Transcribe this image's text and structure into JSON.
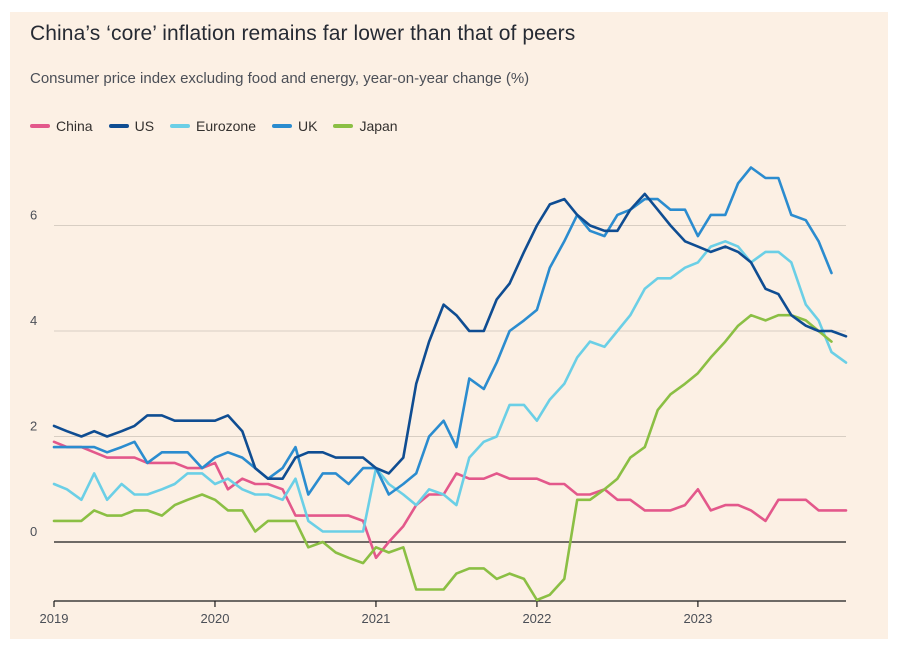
{
  "chart_data": {
    "type": "line",
    "title": "China’s ‘core’ inflation remains far lower than that of peers",
    "subtitle": "Consumer price index excluding food and energy, year-on-year change (%)",
    "xlabel": "",
    "ylabel": "",
    "xlim": [
      2019.0,
      2023.92
    ],
    "ylim": [
      -1.1,
      7.5
    ],
    "y_ticks": [
      0,
      2,
      4,
      6
    ],
    "y_tick_labels": [
      "0",
      "2",
      "4",
      "6"
    ],
    "x_ticks": [
      2019,
      2020,
      2021,
      2022,
      2023
    ],
    "x_tick_labels": [
      "2019",
      "2020",
      "2021",
      "2022",
      "2023"
    ],
    "colors": {
      "China": "#e3588b",
      "US": "#0f4d92",
      "Eurozone": "#6bcfe6",
      "UK": "#2b8ccf",
      "Japan": "#8bbf44",
      "grid": "#d8cec3",
      "zero_line": "#1a1a1a",
      "background": "#fcf0e4"
    },
    "series": [
      {
        "name": "China",
        "points": [
          [
            2019.0,
            1.9
          ],
          [
            2019.08,
            1.8
          ],
          [
            2019.17,
            1.8
          ],
          [
            2019.25,
            1.7
          ],
          [
            2019.33,
            1.6
          ],
          [
            2019.42,
            1.6
          ],
          [
            2019.5,
            1.6
          ],
          [
            2019.58,
            1.5
          ],
          [
            2019.67,
            1.5
          ],
          [
            2019.75,
            1.5
          ],
          [
            2019.83,
            1.4
          ],
          [
            2019.92,
            1.4
          ],
          [
            2020.0,
            1.5
          ],
          [
            2020.08,
            1.0
          ],
          [
            2020.17,
            1.2
          ],
          [
            2020.25,
            1.1
          ],
          [
            2020.33,
            1.1
          ],
          [
            2020.42,
            1.0
          ],
          [
            2020.5,
            0.5
          ],
          [
            2020.58,
            0.5
          ],
          [
            2020.67,
            0.5
          ],
          [
            2020.75,
            0.5
          ],
          [
            2020.83,
            0.5
          ],
          [
            2020.92,
            0.4
          ],
          [
            2021.0,
            -0.3
          ],
          [
            2021.08,
            0.0
          ],
          [
            2021.17,
            0.3
          ],
          [
            2021.25,
            0.7
          ],
          [
            2021.33,
            0.9
          ],
          [
            2021.42,
            0.9
          ],
          [
            2021.5,
            1.3
          ],
          [
            2021.58,
            1.2
          ],
          [
            2021.67,
            1.2
          ],
          [
            2021.75,
            1.3
          ],
          [
            2021.83,
            1.2
          ],
          [
            2021.92,
            1.2
          ],
          [
            2022.0,
            1.2
          ],
          [
            2022.08,
            1.1
          ],
          [
            2022.17,
            1.1
          ],
          [
            2022.25,
            0.9
          ],
          [
            2022.33,
            0.9
          ],
          [
            2022.42,
            1.0
          ],
          [
            2022.5,
            0.8
          ],
          [
            2022.58,
            0.8
          ],
          [
            2022.67,
            0.6
          ],
          [
            2022.75,
            0.6
          ],
          [
            2022.83,
            0.6
          ],
          [
            2022.92,
            0.7
          ],
          [
            2023.0,
            1.0
          ],
          [
            2023.08,
            0.6
          ],
          [
            2023.17,
            0.7
          ],
          [
            2023.25,
            0.7
          ],
          [
            2023.33,
            0.6
          ],
          [
            2023.42,
            0.4
          ],
          [
            2023.5,
            0.8
          ],
          [
            2023.58,
            0.8
          ],
          [
            2023.67,
            0.8
          ],
          [
            2023.75,
            0.6
          ],
          [
            2023.83,
            0.6
          ],
          [
            2023.92,
            0.6
          ]
        ]
      },
      {
        "name": "US",
        "points": [
          [
            2019.0,
            2.2
          ],
          [
            2019.08,
            2.1
          ],
          [
            2019.17,
            2.0
          ],
          [
            2019.25,
            2.1
          ],
          [
            2019.33,
            2.0
          ],
          [
            2019.42,
            2.1
          ],
          [
            2019.5,
            2.2
          ],
          [
            2019.58,
            2.4
          ],
          [
            2019.67,
            2.4
          ],
          [
            2019.75,
            2.3
          ],
          [
            2019.83,
            2.3
          ],
          [
            2019.92,
            2.3
          ],
          [
            2020.0,
            2.3
          ],
          [
            2020.08,
            2.4
          ],
          [
            2020.17,
            2.1
          ],
          [
            2020.25,
            1.4
          ],
          [
            2020.33,
            1.2
          ],
          [
            2020.42,
            1.2
          ],
          [
            2020.5,
            1.6
          ],
          [
            2020.58,
            1.7
          ],
          [
            2020.67,
            1.7
          ],
          [
            2020.75,
            1.6
          ],
          [
            2020.83,
            1.6
          ],
          [
            2020.92,
            1.6
          ],
          [
            2021.0,
            1.4
          ],
          [
            2021.08,
            1.3
          ],
          [
            2021.17,
            1.6
          ],
          [
            2021.25,
            3.0
          ],
          [
            2021.33,
            3.8
          ],
          [
            2021.42,
            4.5
          ],
          [
            2021.5,
            4.3
          ],
          [
            2021.58,
            4.0
          ],
          [
            2021.67,
            4.0
          ],
          [
            2021.75,
            4.6
          ],
          [
            2021.83,
            4.9
          ],
          [
            2021.92,
            5.5
          ],
          [
            2022.0,
            6.0
          ],
          [
            2022.08,
            6.4
          ],
          [
            2022.17,
            6.5
          ],
          [
            2022.25,
            6.2
          ],
          [
            2022.33,
            6.0
          ],
          [
            2022.42,
            5.9
          ],
          [
            2022.5,
            5.9
          ],
          [
            2022.58,
            6.3
          ],
          [
            2022.67,
            6.6
          ],
          [
            2022.75,
            6.3
          ],
          [
            2022.83,
            6.0
          ],
          [
            2022.92,
            5.7
          ],
          [
            2023.0,
            5.6
          ],
          [
            2023.08,
            5.5
          ],
          [
            2023.17,
            5.6
          ],
          [
            2023.25,
            5.5
          ],
          [
            2023.33,
            5.3
          ],
          [
            2023.42,
            4.8
          ],
          [
            2023.5,
            4.7
          ],
          [
            2023.58,
            4.3
          ],
          [
            2023.67,
            4.1
          ],
          [
            2023.75,
            4.0
          ],
          [
            2023.83,
            4.0
          ],
          [
            2023.92,
            3.9
          ]
        ]
      },
      {
        "name": "Eurozone",
        "points": [
          [
            2019.0,
            1.1
          ],
          [
            2019.08,
            1.0
          ],
          [
            2019.17,
            0.8
          ],
          [
            2019.25,
            1.3
          ],
          [
            2019.33,
            0.8
          ],
          [
            2019.42,
            1.1
          ],
          [
            2019.5,
            0.9
          ],
          [
            2019.58,
            0.9
          ],
          [
            2019.67,
            1.0
          ],
          [
            2019.75,
            1.1
          ],
          [
            2019.83,
            1.3
          ],
          [
            2019.92,
            1.3
          ],
          [
            2020.0,
            1.1
          ],
          [
            2020.08,
            1.2
          ],
          [
            2020.17,
            1.0
          ],
          [
            2020.25,
            0.9
          ],
          [
            2020.33,
            0.9
          ],
          [
            2020.42,
            0.8
          ],
          [
            2020.5,
            1.2
          ],
          [
            2020.58,
            0.4
          ],
          [
            2020.67,
            0.2
          ],
          [
            2020.75,
            0.2
          ],
          [
            2020.83,
            0.2
          ],
          [
            2020.92,
            0.2
          ],
          [
            2021.0,
            1.4
          ],
          [
            2021.08,
            1.1
          ],
          [
            2021.17,
            0.9
          ],
          [
            2021.25,
            0.7
          ],
          [
            2021.33,
            1.0
          ],
          [
            2021.42,
            0.9
          ],
          [
            2021.5,
            0.7
          ],
          [
            2021.58,
            1.6
          ],
          [
            2021.67,
            1.9
          ],
          [
            2021.75,
            2.0
          ],
          [
            2021.83,
            2.6
          ],
          [
            2021.92,
            2.6
          ],
          [
            2022.0,
            2.3
          ],
          [
            2022.08,
            2.7
          ],
          [
            2022.17,
            3.0
          ],
          [
            2022.25,
            3.5
          ],
          [
            2022.33,
            3.8
          ],
          [
            2022.42,
            3.7
          ],
          [
            2022.5,
            4.0
          ],
          [
            2022.58,
            4.3
          ],
          [
            2022.67,
            4.8
          ],
          [
            2022.75,
            5.0
          ],
          [
            2022.83,
            5.0
          ],
          [
            2022.92,
            5.2
          ],
          [
            2023.0,
            5.3
          ],
          [
            2023.08,
            5.6
          ],
          [
            2023.17,
            5.7
          ],
          [
            2023.25,
            5.6
          ],
          [
            2023.33,
            5.3
          ],
          [
            2023.42,
            5.5
          ],
          [
            2023.5,
            5.5
          ],
          [
            2023.58,
            5.3
          ],
          [
            2023.67,
            4.5
          ],
          [
            2023.75,
            4.2
          ],
          [
            2023.83,
            3.6
          ],
          [
            2023.92,
            3.4
          ]
        ]
      },
      {
        "name": "UK",
        "points": [
          [
            2019.0,
            1.8
          ],
          [
            2019.08,
            1.8
          ],
          [
            2019.17,
            1.8
          ],
          [
            2019.25,
            1.8
          ],
          [
            2019.33,
            1.7
          ],
          [
            2019.42,
            1.8
          ],
          [
            2019.5,
            1.9
          ],
          [
            2019.58,
            1.5
          ],
          [
            2019.67,
            1.7
          ],
          [
            2019.75,
            1.7
          ],
          [
            2019.83,
            1.7
          ],
          [
            2019.92,
            1.4
          ],
          [
            2020.0,
            1.6
          ],
          [
            2020.08,
            1.7
          ],
          [
            2020.17,
            1.6
          ],
          [
            2020.25,
            1.4
          ],
          [
            2020.33,
            1.2
          ],
          [
            2020.42,
            1.4
          ],
          [
            2020.5,
            1.8
          ],
          [
            2020.58,
            0.9
          ],
          [
            2020.67,
            1.3
          ],
          [
            2020.75,
            1.3
          ],
          [
            2020.83,
            1.1
          ],
          [
            2020.92,
            1.4
          ],
          [
            2021.0,
            1.4
          ],
          [
            2021.08,
            0.9
          ],
          [
            2021.17,
            1.1
          ],
          [
            2021.25,
            1.3
          ],
          [
            2021.33,
            2.0
          ],
          [
            2021.42,
            2.3
          ],
          [
            2021.5,
            1.8
          ],
          [
            2021.58,
            3.1
          ],
          [
            2021.67,
            2.9
          ],
          [
            2021.75,
            3.4
          ],
          [
            2021.83,
            4.0
          ],
          [
            2021.92,
            4.2
          ],
          [
            2022.0,
            4.4
          ],
          [
            2022.08,
            5.2
          ],
          [
            2022.17,
            5.7
          ],
          [
            2022.25,
            6.2
          ],
          [
            2022.33,
            5.9
          ],
          [
            2022.42,
            5.8
          ],
          [
            2022.5,
            6.2
          ],
          [
            2022.58,
            6.3
          ],
          [
            2022.67,
            6.5
          ],
          [
            2022.75,
            6.5
          ],
          [
            2022.83,
            6.3
          ],
          [
            2022.92,
            6.3
          ],
          [
            2023.0,
            5.8
          ],
          [
            2023.08,
            6.2
          ],
          [
            2023.17,
            6.2
          ],
          [
            2023.25,
            6.8
          ],
          [
            2023.33,
            7.1
          ],
          [
            2023.42,
            6.9
          ],
          [
            2023.5,
            6.9
          ],
          [
            2023.58,
            6.2
          ],
          [
            2023.67,
            6.1
          ],
          [
            2023.75,
            5.7
          ],
          [
            2023.83,
            5.1
          ]
        ]
      },
      {
        "name": "Japan",
        "points": [
          [
            2019.0,
            0.4
          ],
          [
            2019.08,
            0.4
          ],
          [
            2019.17,
            0.4
          ],
          [
            2019.25,
            0.6
          ],
          [
            2019.33,
            0.5
          ],
          [
            2019.42,
            0.5
          ],
          [
            2019.5,
            0.6
          ],
          [
            2019.58,
            0.6
          ],
          [
            2019.67,
            0.5
          ],
          [
            2019.75,
            0.7
          ],
          [
            2019.83,
            0.8
          ],
          [
            2019.92,
            0.9
          ],
          [
            2020.0,
            0.8
          ],
          [
            2020.08,
            0.6
          ],
          [
            2020.17,
            0.6
          ],
          [
            2020.25,
            0.2
          ],
          [
            2020.33,
            0.4
          ],
          [
            2020.42,
            0.4
          ],
          [
            2020.5,
            0.4
          ],
          [
            2020.58,
            -0.1
          ],
          [
            2020.67,
            0.0
          ],
          [
            2020.75,
            -0.2
          ],
          [
            2020.83,
            -0.3
          ],
          [
            2020.92,
            -0.4
          ],
          [
            2021.0,
            -0.1
          ],
          [
            2021.08,
            -0.2
          ],
          [
            2021.17,
            -0.1
          ],
          [
            2021.25,
            -0.9
          ],
          [
            2021.33,
            -0.9
          ],
          [
            2021.42,
            -0.9
          ],
          [
            2021.5,
            -0.6
          ],
          [
            2021.58,
            -0.5
          ],
          [
            2021.67,
            -0.5
          ],
          [
            2021.75,
            -0.7
          ],
          [
            2021.83,
            -0.6
          ],
          [
            2021.92,
            -0.7
          ],
          [
            2022.0,
            -1.1
          ],
          [
            2022.08,
            -1.0
          ],
          [
            2022.17,
            -0.7
          ],
          [
            2022.25,
            0.8
          ],
          [
            2022.33,
            0.8
          ],
          [
            2022.42,
            1.0
          ],
          [
            2022.5,
            1.2
          ],
          [
            2022.58,
            1.6
          ],
          [
            2022.67,
            1.8
          ],
          [
            2022.75,
            2.5
          ],
          [
            2022.83,
            2.8
          ],
          [
            2022.92,
            3.0
          ],
          [
            2023.0,
            3.2
          ],
          [
            2023.08,
            3.5
          ],
          [
            2023.17,
            3.8
          ],
          [
            2023.25,
            4.1
          ],
          [
            2023.33,
            4.3
          ],
          [
            2023.42,
            4.2
          ],
          [
            2023.5,
            4.3
          ],
          [
            2023.58,
            4.3
          ],
          [
            2023.67,
            4.2
          ],
          [
            2023.75,
            4.0
          ],
          [
            2023.83,
            3.8
          ]
        ]
      }
    ]
  }
}
